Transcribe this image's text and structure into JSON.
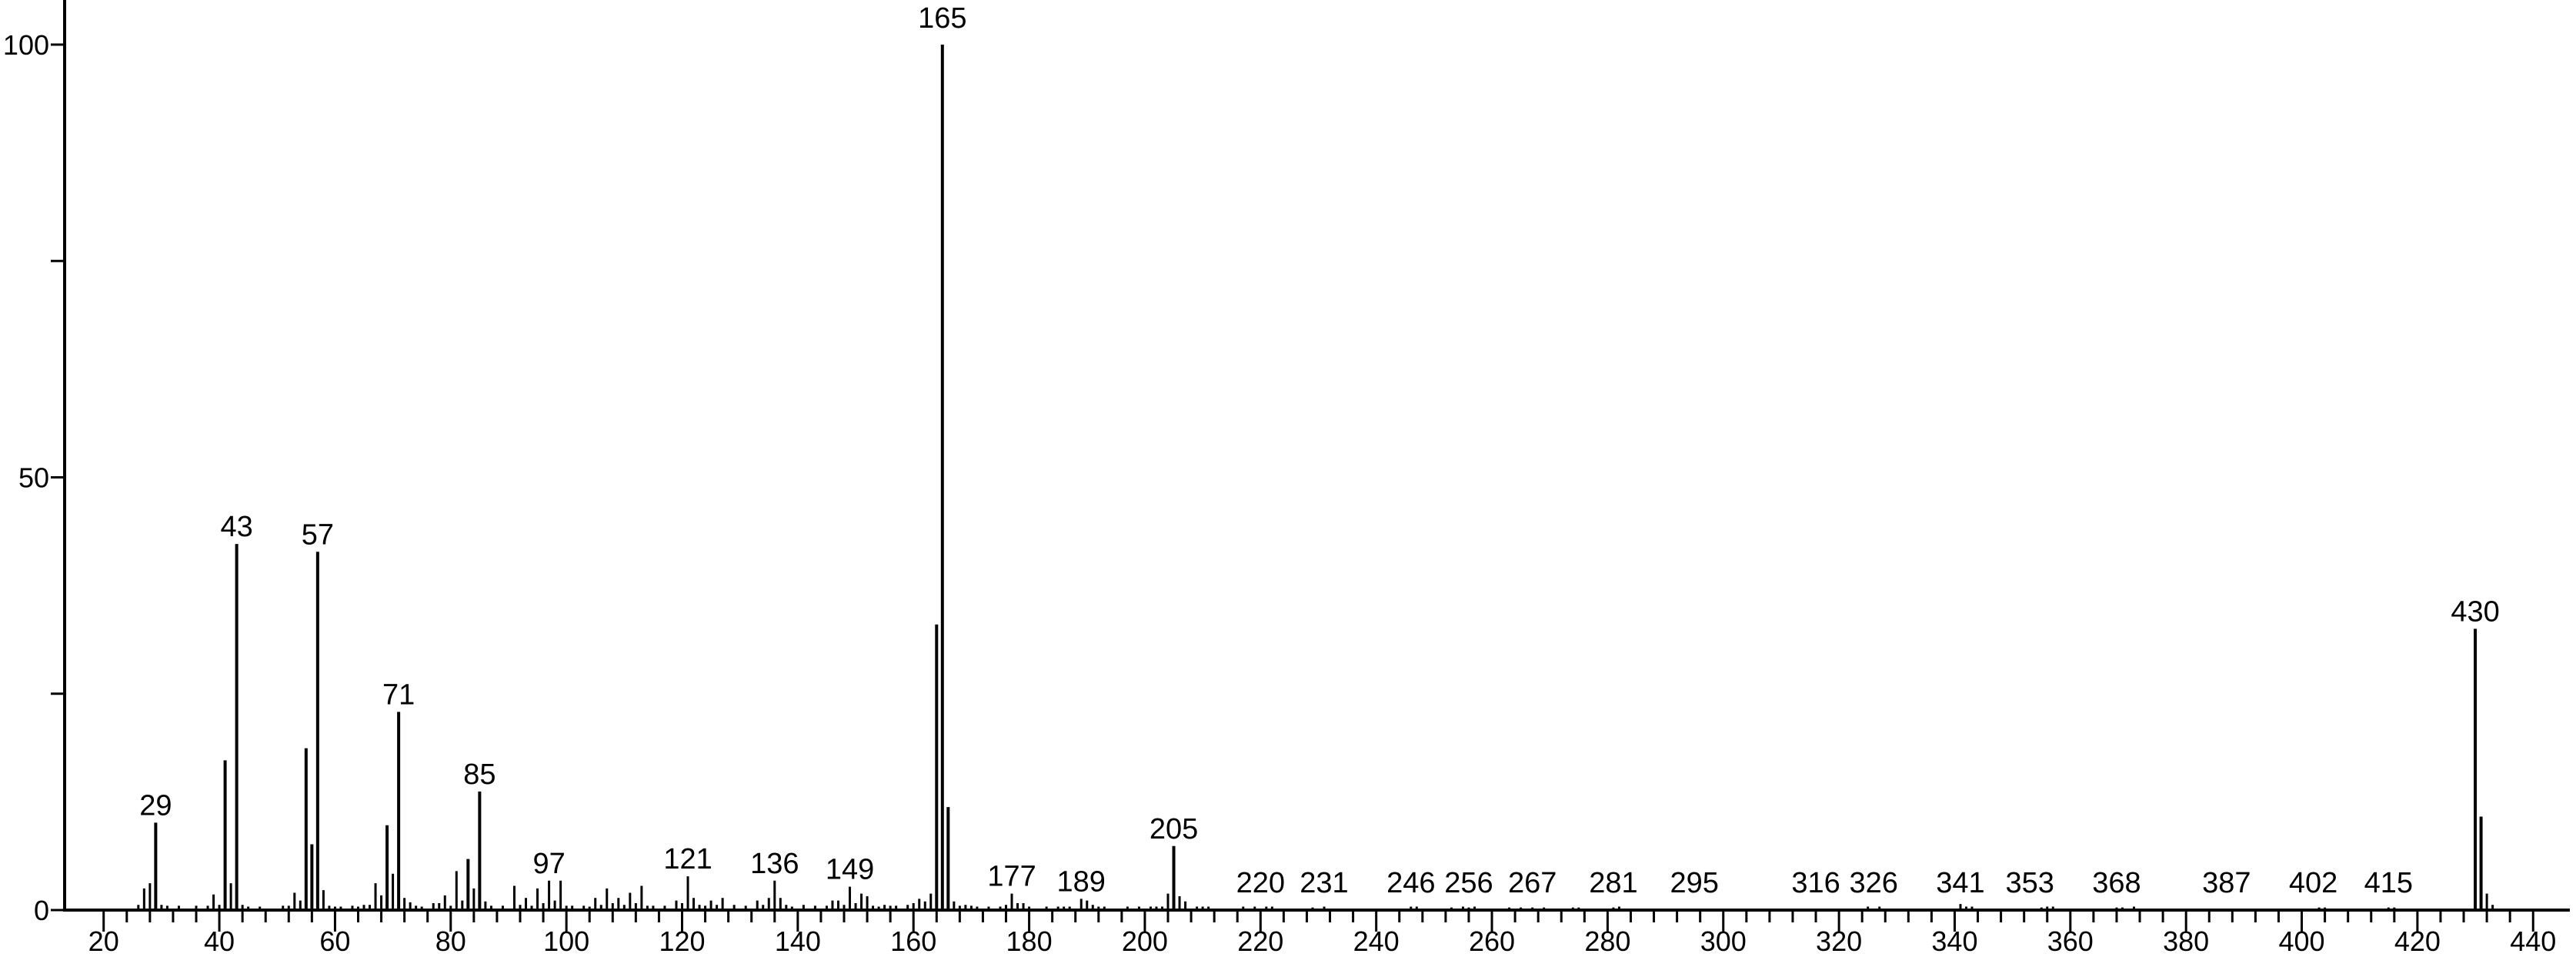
{
  "chart_data": {
    "type": "bar",
    "title": "",
    "xlabel": "",
    "ylabel": "",
    "xlim": [
      12,
      446
    ],
    "ylim": [
      0,
      100
    ],
    "grid": false,
    "x_major_ticks": [
      20,
      40,
      60,
      80,
      100,
      120,
      140,
      160,
      180,
      200,
      220,
      240,
      260,
      280,
      300,
      320,
      340,
      360,
      380,
      400,
      420,
      440
    ],
    "x_minor_tick_step": 4,
    "y_major_ticks": [
      0,
      25,
      50,
      75,
      100
    ],
    "y_tick_labels": [
      "0",
      "50",
      "100"
    ],
    "y_tick_label_values": [
      0,
      50,
      100
    ],
    "color": "#000000",
    "peaks": [
      [
        26,
        0.6
      ],
      [
        27,
        2.5
      ],
      [
        28,
        3.1
      ],
      [
        29,
        10.1
      ],
      [
        30,
        0.6
      ],
      [
        31,
        0.5
      ],
      [
        33,
        0.5
      ],
      [
        36,
        0.5
      ],
      [
        38,
        0.5
      ],
      [
        39,
        1.8
      ],
      [
        40,
        0.6
      ],
      [
        41,
        17.3
      ],
      [
        42,
        3.1
      ],
      [
        43,
        42.3
      ],
      [
        44,
        0.6
      ],
      [
        45,
        0.4
      ],
      [
        47,
        0.4
      ],
      [
        51,
        0.5
      ],
      [
        52,
        0.5
      ],
      [
        53,
        2.0
      ],
      [
        54,
        1.1
      ],
      [
        55,
        18.7
      ],
      [
        56,
        7.6
      ],
      [
        57,
        41.4
      ],
      [
        58,
        2.3
      ],
      [
        59,
        0.5
      ],
      [
        60,
        0.4
      ],
      [
        61,
        0.4
      ],
      [
        63,
        0.5
      ],
      [
        64,
        0.4
      ],
      [
        65,
        0.6
      ],
      [
        66,
        0.6
      ],
      [
        67,
        3.1
      ],
      [
        68,
        1.7
      ],
      [
        69,
        9.8
      ],
      [
        70,
        4.2
      ],
      [
        71,
        22.9
      ],
      [
        72,
        1.4
      ],
      [
        73,
        0.9
      ],
      [
        74,
        0.5
      ],
      [
        75,
        0.4
      ],
      [
        77,
        0.8
      ],
      [
        78,
        0.8
      ],
      [
        79,
        1.7
      ],
      [
        80,
        0.5
      ],
      [
        81,
        4.5
      ],
      [
        82,
        1.1
      ],
      [
        83,
        5.9
      ],
      [
        84,
        2.5
      ],
      [
        85,
        13.7
      ],
      [
        86,
        1.0
      ],
      [
        87,
        0.5
      ],
      [
        89,
        0.5
      ],
      [
        91,
        2.8
      ],
      [
        92,
        0.6
      ],
      [
        93,
        1.4
      ],
      [
        94,
        0.5
      ],
      [
        95,
        2.5
      ],
      [
        96,
        0.8
      ],
      [
        97,
        3.4
      ],
      [
        98,
        1.1
      ],
      [
        99,
        3.4
      ],
      [
        100,
        0.5
      ],
      [
        101,
        0.5
      ],
      [
        103,
        0.5
      ],
      [
        104,
        0.4
      ],
      [
        105,
        1.4
      ],
      [
        106,
        0.6
      ],
      [
        107,
        2.5
      ],
      [
        108,
        0.8
      ],
      [
        109,
        1.4
      ],
      [
        110,
        0.6
      ],
      [
        111,
        2.0
      ],
      [
        112,
        0.8
      ],
      [
        113,
        2.8
      ],
      [
        114,
        0.5
      ],
      [
        115,
        0.5
      ],
      [
        117,
        0.5
      ],
      [
        119,
        1.1
      ],
      [
        120,
        0.8
      ],
      [
        121,
        3.9
      ],
      [
        122,
        1.4
      ],
      [
        123,
        0.6
      ],
      [
        124,
        0.5
      ],
      [
        125,
        1.1
      ],
      [
        126,
        0.6
      ],
      [
        127,
        1.4
      ],
      [
        129,
        0.6
      ],
      [
        131,
        0.5
      ],
      [
        133,
        1.1
      ],
      [
        134,
        0.6
      ],
      [
        135,
        1.4
      ],
      [
        136,
        3.4
      ],
      [
        137,
        1.4
      ],
      [
        138,
        0.6
      ],
      [
        139,
        0.4
      ],
      [
        141,
        0.6
      ],
      [
        143,
        0.5
      ],
      [
        145,
        0.5
      ],
      [
        146,
        1.1
      ],
      [
        147,
        1.1
      ],
      [
        148,
        0.6
      ],
      [
        149,
        2.7
      ],
      [
        150,
        0.8
      ],
      [
        151,
        1.9
      ],
      [
        152,
        1.6
      ],
      [
        153,
        0.5
      ],
      [
        154,
        0.4
      ],
      [
        155,
        0.6
      ],
      [
        156,
        0.5
      ],
      [
        157,
        0.5
      ],
      [
        159,
        0.6
      ],
      [
        160,
        0.8
      ],
      [
        161,
        1.3
      ],
      [
        162,
        1.0
      ],
      [
        163,
        1.9
      ],
      [
        164,
        33.0
      ],
      [
        165,
        100
      ],
      [
        166,
        11.9
      ],
      [
        167,
        1.0
      ],
      [
        168,
        0.5
      ],
      [
        169,
        0.6
      ],
      [
        170,
        0.5
      ],
      [
        171,
        0.4
      ],
      [
        173,
        0.4
      ],
      [
        175,
        0.4
      ],
      [
        176,
        0.6
      ],
      [
        177,
        1.9
      ],
      [
        178,
        0.8
      ],
      [
        179,
        0.8
      ],
      [
        180,
        0.4
      ],
      [
        183,
        0.4
      ],
      [
        185,
        0.4
      ],
      [
        186,
        0.4
      ],
      [
        187,
        0.4
      ],
      [
        189,
        1.3
      ],
      [
        190,
        1.1
      ],
      [
        191,
        0.6
      ],
      [
        192,
        0.4
      ],
      [
        193,
        0.4
      ],
      [
        197,
        0.4
      ],
      [
        199,
        0.4
      ],
      [
        201,
        0.4
      ],
      [
        202,
        0.4
      ],
      [
        203,
        0.4
      ],
      [
        204,
        1.9
      ],
      [
        205,
        7.4
      ],
      [
        206,
        1.6
      ],
      [
        207,
        1.0
      ],
      [
        209,
        0.4
      ],
      [
        210,
        0.4
      ],
      [
        211,
        0.4
      ],
      [
        217,
        0.4
      ],
      [
        219,
        0.4
      ],
      [
        221,
        0.4
      ],
      [
        222,
        0.4
      ],
      [
        229,
        0.3
      ],
      [
        231,
        0.4
      ],
      [
        246,
        0.4
      ],
      [
        247,
        0.4
      ],
      [
        253,
        0.3
      ],
      [
        255,
        0.4
      ],
      [
        256,
        0.3
      ],
      [
        257,
        0.4
      ],
      [
        263,
        0.3
      ],
      [
        265,
        0.3
      ],
      [
        267,
        0.3
      ],
      [
        269,
        0.3
      ],
      [
        274,
        0.3
      ],
      [
        275,
        0.3
      ],
      [
        281,
        0.3
      ],
      [
        282,
        0.4
      ],
      [
        325,
        0.4
      ],
      [
        327,
        0.4
      ],
      [
        341,
        0.7
      ],
      [
        342,
        0.4
      ],
      [
        343,
        0.4
      ],
      [
        355,
        0.3
      ],
      [
        356,
        0.4
      ],
      [
        357,
        0.4
      ],
      [
        368,
        0.3
      ],
      [
        369,
        0.3
      ],
      [
        371,
        0.4
      ],
      [
        403,
        0.3
      ],
      [
        404,
        0.3
      ],
      [
        415,
        0.3
      ],
      [
        416,
        0.3
      ],
      [
        430,
        32.5
      ],
      [
        431,
        10.8
      ],
      [
        432,
        1.9
      ],
      [
        433,
        0.6
      ]
    ],
    "peak_labels": [
      29,
      43,
      57,
      71,
      85,
      97,
      121,
      136,
      149,
      165,
      177,
      189,
      205,
      220,
      231,
      246,
      256,
      267,
      281,
      295,
      316,
      326,
      341,
      353,
      368,
      387,
      402,
      415,
      430
    ]
  }
}
